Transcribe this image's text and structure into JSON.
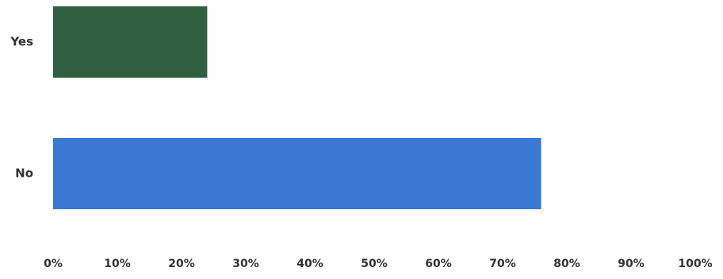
{
  "chart_data": {
    "type": "bar",
    "orientation": "horizontal",
    "categories": [
      "Yes",
      "No"
    ],
    "values": [
      24,
      76
    ],
    "colors": [
      "#2f5f3f",
      "#3a78d4"
    ],
    "xlim": [
      0,
      100
    ],
    "xticks": [
      "0%",
      "10%",
      "20%",
      "30%",
      "40%",
      "50%",
      "60%",
      "70%",
      "80%",
      "90%",
      "100%"
    ],
    "value_unit": "%",
    "grid": false,
    "legend": "none"
  }
}
